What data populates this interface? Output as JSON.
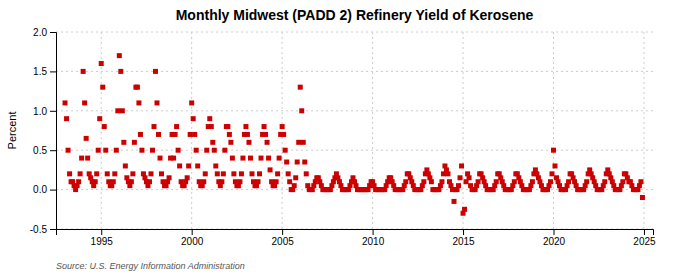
{
  "chart_data": {
    "type": "scatter",
    "title": "Monthly Midwest (PADD 2) Refinery Yield of Kerosene",
    "y_label": "Percent",
    "source": "Source: U.S. Energy Information Administration",
    "xlim": [
      1992.5,
      2025.5
    ],
    "ylim": [
      -0.5,
      2.0
    ],
    "yticks": [
      -0.5,
      {
        "value": 0.0,
        "label": "0.0"
      },
      0.5,
      {
        "value": 1.0,
        "label": "1.0"
      },
      1.5,
      {
        "value": 2.0,
        "label": "2.0"
      }
    ],
    "xticks": [
      1995,
      2000,
      2005,
      2010,
      2015,
      2020,
      2025
    ],
    "color": "#CC0000",
    "marker": "square",
    "grid": true,
    "x": [
      1993.0,
      1993.083,
      1993.167,
      1993.25,
      1993.333,
      1993.417,
      1993.5,
      1993.583,
      1993.667,
      1993.75,
      1993.833,
      1993.917,
      1994.0,
      1994.083,
      1994.167,
      1994.25,
      1994.333,
      1994.417,
      1994.5,
      1994.583,
      1994.667,
      1994.75,
      1994.833,
      1994.917,
      1995.0,
      1995.083,
      1995.167,
      1995.25,
      1995.333,
      1995.417,
      1995.5,
      1995.583,
      1995.667,
      1995.75,
      1995.833,
      1995.917,
      1996.0,
      1996.083,
      1996.167,
      1996.25,
      1996.333,
      1996.417,
      1996.5,
      1996.583,
      1996.667,
      1996.75,
      1996.833,
      1996.917,
      1997.0,
      1997.083,
      1997.167,
      1997.25,
      1997.333,
      1997.417,
      1997.5,
      1997.583,
      1997.667,
      1997.75,
      1997.833,
      1997.917,
      1998.0,
      1998.083,
      1998.167,
      1998.25,
      1998.333,
      1998.417,
      1998.5,
      1998.583,
      1998.667,
      1998.75,
      1998.833,
      1998.917,
      1999.0,
      1999.083,
      1999.167,
      1999.25,
      1999.333,
      1999.417,
      1999.5,
      1999.583,
      1999.667,
      1999.75,
      1999.833,
      1999.917,
      2000.0,
      2000.083,
      2000.167,
      2000.25,
      2000.333,
      2000.417,
      2000.5,
      2000.583,
      2000.667,
      2000.75,
      2000.833,
      2000.917,
      2001.0,
      2001.083,
      2001.167,
      2001.25,
      2001.333,
      2001.417,
      2001.5,
      2001.583,
      2001.667,
      2001.75,
      2001.833,
      2001.917,
      2002.0,
      2002.083,
      2002.167,
      2002.25,
      2002.333,
      2002.417,
      2002.5,
      2002.583,
      2002.667,
      2002.75,
      2002.833,
      2002.917,
      2003.0,
      2003.083,
      2003.167,
      2003.25,
      2003.333,
      2003.417,
      2003.5,
      2003.583,
      2003.667,
      2003.75,
      2003.833,
      2003.917,
      2004.0,
      2004.083,
      2004.167,
      2004.25,
      2004.333,
      2004.417,
      2004.5,
      2004.583,
      2004.667,
      2004.75,
      2004.833,
      2004.917,
      2005.0,
      2005.083,
      2005.167,
      2005.25,
      2005.333,
      2005.417,
      2005.5,
      2005.583,
      2005.667,
      2005.75,
      2005.833,
      2005.917,
      2006.0,
      2006.083,
      2006.167,
      2006.25,
      2006.333,
      2006.417,
      2006.5,
      2006.583,
      2006.667,
      2006.75,
      2006.833,
      2006.917,
      2007.0,
      2007.083,
      2007.167,
      2007.25,
      2007.333,
      2007.417,
      2007.5,
      2007.583,
      2007.667,
      2007.75,
      2007.833,
      2007.917,
      2008.0,
      2008.083,
      2008.167,
      2008.25,
      2008.333,
      2008.417,
      2008.5,
      2008.583,
      2008.667,
      2008.75,
      2008.833,
      2008.917,
      2009.0,
      2009.083,
      2009.167,
      2009.25,
      2009.333,
      2009.417,
      2009.5,
      2009.583,
      2009.667,
      2009.75,
      2009.833,
      2009.917,
      2010.0,
      2010.083,
      2010.167,
      2010.25,
      2010.333,
      2010.417,
      2010.5,
      2010.583,
      2010.667,
      2010.75,
      2010.833,
      2010.917,
      2011.0,
      2011.083,
      2011.167,
      2011.25,
      2011.333,
      2011.417,
      2011.5,
      2011.583,
      2011.667,
      2011.75,
      2011.833,
      2011.917,
      2012.0,
      2012.083,
      2012.167,
      2012.25,
      2012.333,
      2012.417,
      2012.5,
      2012.583,
      2012.667,
      2012.75,
      2012.833,
      2012.917,
      2013.0,
      2013.083,
      2013.167,
      2013.25,
      2013.333,
      2013.417,
      2013.5,
      2013.583,
      2013.667,
      2013.75,
      2013.833,
      2013.917,
      2014.0,
      2014.083,
      2014.167,
      2014.25,
      2014.333,
      2014.417,
      2014.5,
      2014.583,
      2014.667,
      2014.75,
      2014.833,
      2014.917,
      2015.0,
      2015.083,
      2015.167,
      2015.25,
      2015.333,
      2015.417,
      2015.5,
      2015.583,
      2015.667,
      2015.75,
      2015.833,
      2015.917,
      2016.0,
      2016.083,
      2016.167,
      2016.25,
      2016.333,
      2016.417,
      2016.5,
      2016.583,
      2016.667,
      2016.75,
      2016.833,
      2016.917,
      2017.0,
      2017.083,
      2017.167,
      2017.25,
      2017.333,
      2017.417,
      2017.5,
      2017.583,
      2017.667,
      2017.75,
      2017.833,
      2017.917,
      2018.0,
      2018.083,
      2018.167,
      2018.25,
      2018.333,
      2018.417,
      2018.5,
      2018.583,
      2018.667,
      2018.75,
      2018.833,
      2018.917,
      2019.0,
      2019.083,
      2019.167,
      2019.25,
      2019.333,
      2019.417,
      2019.5,
      2019.583,
      2019.667,
      2019.75,
      2019.833,
      2019.917,
      2020.0,
      2020.083,
      2020.167,
      2020.25,
      2020.333,
      2020.417,
      2020.5,
      2020.583,
      2020.667,
      2020.75,
      2020.833,
      2020.917,
      2021.0,
      2021.083,
      2021.167,
      2021.25,
      2021.333,
      2021.417,
      2021.5,
      2021.583,
      2021.667,
      2021.75,
      2021.833,
      2021.917,
      2022.0,
      2022.083,
      2022.167,
      2022.25,
      2022.333,
      2022.417,
      2022.5,
      2022.583,
      2022.667,
      2022.75,
      2022.833,
      2022.917,
      2023.0,
      2023.083,
      2023.167,
      2023.25,
      2023.333,
      2023.417,
      2023.5,
      2023.583,
      2023.667,
      2023.75,
      2023.833,
      2023.917,
      2024.0,
      2024.083,
      2024.167,
      2024.25,
      2024.333,
      2024.417,
      2024.5,
      2024.583,
      2024.667,
      2024.75,
      2024.833,
      2024.917
    ],
    "values": [
      1.1,
      0.9,
      0.5,
      0.2,
      0.1,
      0.1,
      0.05,
      0.0,
      0.05,
      0.1,
      0.2,
      0.4,
      1.5,
      1.1,
      0.65,
      0.4,
      0.2,
      0.15,
      0.1,
      0.05,
      0.1,
      0.2,
      0.5,
      0.9,
      1.6,
      1.3,
      0.8,
      0.5,
      0.2,
      0.1,
      0.05,
      0.05,
      0.1,
      0.2,
      0.5,
      1.0,
      1.7,
      1.5,
      1.0,
      0.6,
      0.3,
      0.15,
      0.1,
      0.05,
      0.1,
      0.2,
      0.6,
      1.3,
      1.3,
      1.1,
      0.7,
      0.5,
      0.2,
      0.15,
      0.1,
      0.05,
      0.1,
      0.2,
      0.5,
      0.8,
      1.5,
      1.1,
      0.7,
      0.4,
      0.2,
      0.1,
      0.05,
      0.05,
      0.1,
      0.15,
      0.4,
      0.7,
      0.4,
      0.7,
      0.8,
      0.5,
      0.3,
      0.1,
      0.05,
      0.05,
      0.1,
      0.15,
      0.3,
      0.7,
      1.1,
      0.9,
      0.7,
      0.5,
      0.3,
      0.1,
      0.05,
      0.05,
      0.1,
      0.2,
      0.5,
      0.8,
      0.9,
      0.8,
      0.6,
      0.5,
      0.3,
      0.2,
      0.1,
      0.05,
      0.1,
      0.2,
      0.5,
      0.8,
      0.8,
      0.7,
      0.6,
      0.4,
      0.2,
      0.1,
      0.05,
      0.05,
      0.1,
      0.2,
      0.4,
      0.7,
      0.8,
      0.7,
      0.6,
      0.4,
      0.2,
      0.1,
      0.05,
      0.05,
      0.1,
      0.2,
      0.4,
      0.7,
      0.8,
      0.7,
      0.6,
      0.4,
      0.25,
      0.1,
      0.05,
      0.05,
      0.1,
      0.2,
      0.4,
      0.7,
      0.8,
      0.7,
      0.5,
      0.35,
      0.2,
      0.1,
      0.0,
      0.0,
      0.05,
      0.15,
      0.35,
      0.6,
      1.3,
      1.0,
      0.6,
      0.35,
      0.2,
      0.05,
      0.0,
      0.0,
      0.0,
      0.05,
      0.1,
      0.15,
      0.15,
      0.1,
      0.05,
      0.0,
      0.0,
      0.0,
      0.0,
      0.0,
      0.0,
      0.05,
      0.1,
      0.15,
      0.2,
      0.15,
      0.1,
      0.05,
      0.0,
      0.0,
      0.0,
      0.0,
      0.0,
      0.05,
      0.1,
      0.15,
      0.1,
      0.05,
      0.0,
      0.0,
      0.0,
      0.0,
      0.0,
      0.0,
      0.0,
      0.0,
      0.05,
      0.1,
      0.1,
      0.05,
      0.0,
      0.0,
      0.0,
      0.0,
      0.0,
      0.0,
      0.0,
      0.05,
      0.1,
      0.15,
      0.15,
      0.1,
      0.05,
      0.0,
      0.0,
      0.0,
      0.0,
      0.0,
      0.0,
      0.05,
      0.1,
      0.2,
      0.2,
      0.15,
      0.1,
      0.05,
      0.0,
      0.0,
      0.0,
      0.0,
      0.0,
      0.05,
      0.1,
      0.2,
      0.25,
      0.2,
      0.15,
      0.1,
      0.0,
      0.0,
      0.0,
      0.0,
      0.0,
      0.05,
      0.1,
      0.2,
      0.3,
      0.25,
      0.2,
      0.1,
      0.05,
      0.0,
      -0.15,
      0.0,
      0.0,
      0.05,
      0.15,
      0.3,
      -0.3,
      -0.25,
      0.1,
      0.2,
      0.15,
      0.05,
      0.0,
      0.0,
      0.0,
      0.05,
      0.1,
      0.2,
      0.2,
      0.15,
      0.1,
      0.05,
      0.0,
      0.0,
      0.0,
      0.0,
      0.0,
      0.05,
      0.1,
      0.2,
      0.2,
      0.15,
      0.1,
      0.05,
      0.0,
      0.0,
      0.0,
      0.0,
      0.0,
      0.05,
      0.1,
      0.2,
      0.2,
      0.15,
      0.1,
      0.05,
      0.0,
      0.0,
      0.0,
      0.0,
      0.0,
      0.05,
      0.1,
      0.2,
      0.25,
      0.2,
      0.15,
      0.1,
      0.05,
      0.0,
      0.0,
      0.0,
      0.0,
      0.05,
      0.1,
      0.2,
      0.5,
      0.3,
      0.15,
      0.1,
      0.05,
      0.0,
      0.0,
      0.0,
      0.0,
      0.05,
      0.1,
      0.2,
      0.2,
      0.15,
      0.1,
      0.05,
      0.0,
      0.0,
      0.0,
      0.0,
      0.0,
      0.05,
      0.1,
      0.2,
      0.25,
      0.2,
      0.15,
      0.1,
      0.05,
      0.0,
      0.0,
      0.0,
      0.0,
      0.05,
      0.1,
      0.2,
      0.25,
      0.2,
      0.15,
      0.1,
      0.05,
      0.0,
      0.0,
      0.0,
      0.0,
      0.05,
      0.1,
      0.2,
      0.2,
      0.15,
      0.1,
      0.1,
      0.05,
      0.0,
      0.0,
      0.0,
      0.0,
      0.05,
      0.1,
      -0.1
    ]
  }
}
